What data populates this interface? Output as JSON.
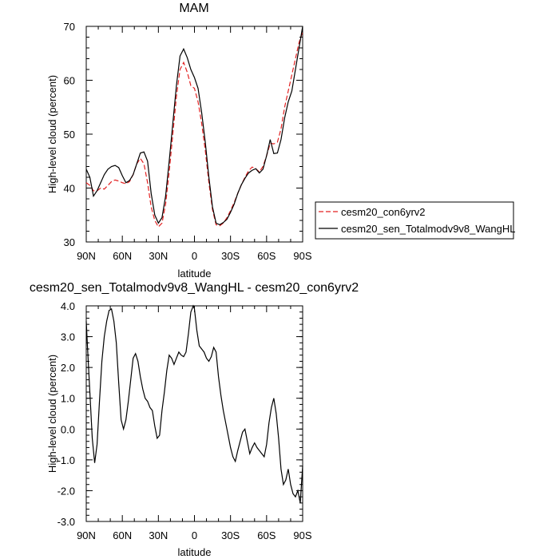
{
  "chart_data": [
    {
      "type": "line",
      "title": "MAM",
      "xlabel": "latitude",
      "ylabel": "High-level cloud (percent)",
      "xlim": [
        90,
        -90
      ],
      "ylim": [
        30,
        70
      ],
      "x_ticks": [
        90,
        60,
        30,
        0,
        -30,
        -60,
        -90
      ],
      "x_tick_labels": [
        "90N",
        "60N",
        "30N",
        "0",
        "30S",
        "60S",
        "90S"
      ],
      "y_ticks": [
        30,
        40,
        50,
        60,
        70
      ],
      "y_tick_labels": [
        "30",
        "40",
        "50",
        "60",
        "70"
      ],
      "legend_position": "right",
      "series": [
        {
          "name": "cesm20_con6yrv2",
          "color": "#e32222",
          "dash": "dashed",
          "x": [
            90,
            87,
            84,
            81,
            78,
            75,
            72,
            69,
            66,
            63,
            60,
            57,
            54,
            51,
            48,
            45,
            42,
            39,
            36,
            33,
            30,
            27,
            24,
            21,
            18,
            15,
            12,
            9,
            6,
            3,
            0,
            -3,
            -6,
            -9,
            -12,
            -15,
            -18,
            -21,
            -24,
            -27,
            -30,
            -33,
            -36,
            -39,
            -42,
            -45,
            -48,
            -51,
            -54,
            -57,
            -60,
            -63,
            -66,
            -69,
            -72,
            -75,
            -78,
            -81,
            -84,
            -87,
            -90
          ],
          "y": [
            41,
            40.5,
            39.5,
            39.5,
            40,
            39.8,
            40.5,
            41.2,
            41.5,
            41.3,
            41,
            40.8,
            41.2,
            42.5,
            44.5,
            45.5,
            44.5,
            41,
            36.5,
            34,
            32.8,
            33.5,
            37,
            43,
            50,
            57,
            62,
            63.3,
            61.5,
            59,
            58.5,
            56,
            52,
            47,
            41,
            36,
            33.2,
            33,
            33.5,
            34.5,
            35.8,
            37.3,
            39,
            40.6,
            42,
            43.2,
            43.9,
            43.6,
            43,
            44,
            46,
            48.3,
            48.2,
            48.5,
            51,
            55,
            58,
            61,
            64,
            67,
            69
          ]
        },
        {
          "name": "cesm20_sen_Totalmodv9v8_WangHL",
          "color": "#000000",
          "dash": "solid",
          "x": [
            90,
            87,
            84,
            81,
            78,
            75,
            72,
            69,
            66,
            63,
            60,
            57,
            54,
            51,
            48,
            45,
            42,
            39,
            36,
            33,
            30,
            27,
            24,
            21,
            18,
            15,
            12,
            9,
            6,
            3,
            0,
            -3,
            -6,
            -9,
            -12,
            -15,
            -18,
            -21,
            -24,
            -27,
            -30,
            -33,
            -36,
            -39,
            -42,
            -45,
            -48,
            -51,
            -54,
            -57,
            -60,
            -63,
            -66,
            -69,
            -72,
            -75,
            -78,
            -81,
            -84,
            -87,
            -90
          ],
          "y": [
            43.5,
            42,
            38.5,
            39.5,
            41,
            42.5,
            43.5,
            44,
            44.2,
            43.8,
            42.3,
            41,
            41.4,
            42.5,
            44.5,
            46.5,
            46.7,
            45,
            39,
            35,
            33.5,
            34.5,
            38.5,
            45,
            52,
            59,
            64.5,
            65.8,
            64.2,
            62,
            60.5,
            58.5,
            54,
            48.5,
            42,
            36.5,
            33.5,
            33.2,
            33.6,
            34.2,
            35.5,
            37,
            39,
            40.6,
            41.8,
            42.8,
            43.3,
            43.6,
            42.8,
            43.5,
            46,
            49,
            46.4,
            46.5,
            49,
            53,
            56,
            58,
            62,
            66,
            70
          ]
        }
      ]
    },
    {
      "type": "line",
      "title": "cesm20_sen_Totalmodv9v8_WangHL - cesm20_con6yrv2",
      "xlabel": "latitude",
      "ylabel": "High-level cloud (percent)",
      "xlim": [
        90,
        -90
      ],
      "ylim": [
        -3,
        4
      ],
      "x_ticks": [
        90,
        60,
        30,
        0,
        -30,
        -60,
        -90
      ],
      "x_tick_labels": [
        "90N",
        "60N",
        "30N",
        "0",
        "30S",
        "60S",
        "90S"
      ],
      "y_ticks": [
        -3,
        -2,
        -1,
        0,
        1,
        2,
        3,
        4
      ],
      "y_tick_labels": [
        "-3.0",
        "-2.0",
        "-1.0",
        "0.0",
        "1.0",
        "2.0",
        "3.0",
        "4.0"
      ],
      "series": [
        {
          "color": "#000000",
          "dash": "solid",
          "x": [
            90,
            89,
            87,
            85,
            83,
            81,
            79,
            77,
            75,
            73,
            71,
            69,
            67,
            65,
            63,
            61,
            59,
            57,
            55,
            53,
            51,
            49,
            47,
            45,
            43,
            41,
            39,
            37,
            35,
            33,
            31,
            29,
            27,
            25,
            23,
            21,
            19,
            17,
            15,
            13,
            11,
            9,
            7,
            5,
            3,
            1,
            0,
            -2,
            -4,
            -6,
            -8,
            -10,
            -12,
            -14,
            -16,
            -18,
            -20,
            -22,
            -24,
            -26,
            -28,
            -30,
            -32,
            -34,
            -36,
            -38,
            -40,
            -42,
            -44,
            -46,
            -48,
            -50,
            -52,
            -54,
            -56,
            -58,
            -60,
            -62,
            -64,
            -66,
            -68,
            -70,
            -72,
            -74,
            -76,
            -78,
            -80,
            -82,
            -84,
            -86,
            -88,
            -90
          ],
          "y": [
            3.5,
            2.7,
            1.2,
            -0.3,
            -1.1,
            -0.5,
            0.9,
            2.2,
            3.0,
            3.5,
            3.85,
            3.9,
            3.5,
            2.8,
            1.5,
            0.3,
            0.0,
            0.3,
            0.9,
            1.6,
            2.3,
            2.45,
            2.2,
            1.7,
            1.3,
            1.0,
            0.9,
            0.7,
            0.6,
            0.1,
            -0.3,
            -0.2,
            0.6,
            1.2,
            1.9,
            2.4,
            2.3,
            2.1,
            2.3,
            2.5,
            2.4,
            2.35,
            2.5,
            3.1,
            3.8,
            4.0,
            3.9,
            3.2,
            2.7,
            2.6,
            2.5,
            2.3,
            2.2,
            2.35,
            2.65,
            2.5,
            1.7,
            1.1,
            0.6,
            0.2,
            -0.2,
            -0.6,
            -0.9,
            -1.05,
            -0.7,
            -0.4,
            -0.1,
            0.0,
            -0.4,
            -0.8,
            -0.6,
            -0.45,
            -0.6,
            -0.7,
            -0.8,
            -0.9,
            -0.5,
            0.2,
            0.7,
            1.0,
            0.5,
            -0.3,
            -1.3,
            -1.8,
            -1.65,
            -1.3,
            -1.8,
            -2.1,
            -2.2,
            -2.0,
            -2.4,
            -1.2
          ]
        }
      ]
    }
  ]
}
